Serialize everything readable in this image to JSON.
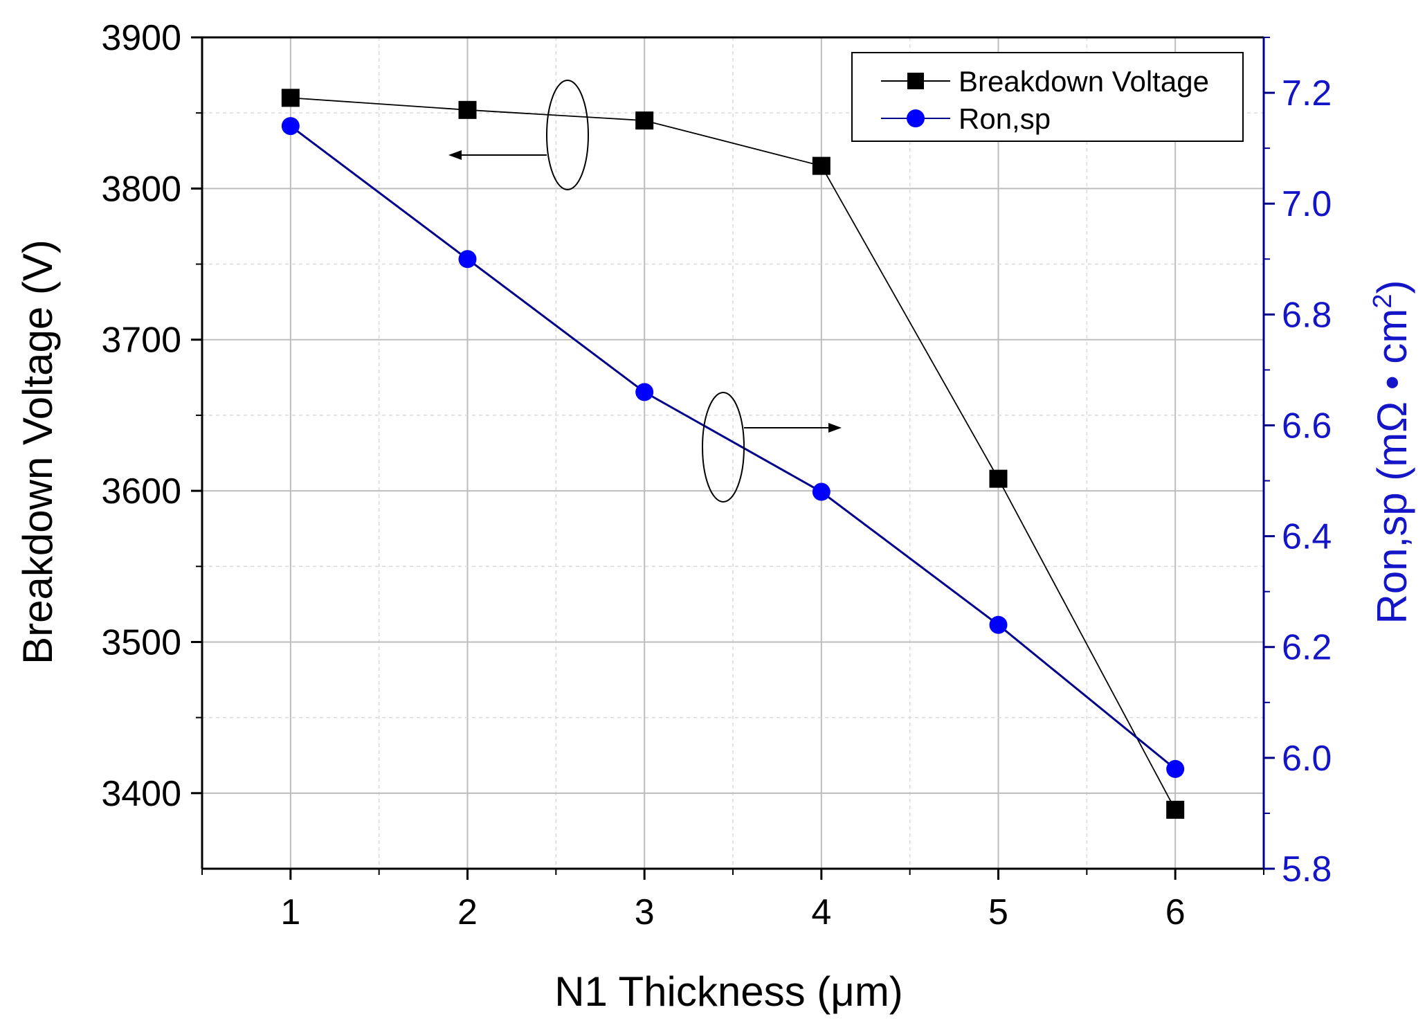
{
  "chart_data": {
    "type": "line",
    "title": "",
    "xlabel": "N1 Thickness (μm)",
    "ylabel": "Breakdown Voltage (V)",
    "y2label": "Ron,sp (mΩ • cm²)",
    "y2label_parts": {
      "main": "Ron,sp (mΩ • cm",
      "sup": "2",
      "end": ")"
    },
    "xlim": [
      0.5,
      6.5
    ],
    "ylim": [
      3350,
      3900
    ],
    "y2lim": [
      5.8,
      7.3
    ],
    "x_ticks": [
      1,
      2,
      3,
      4,
      5,
      6
    ],
    "y_ticks": [
      3400,
      3500,
      3600,
      3700,
      3800,
      3900
    ],
    "y2_ticks": [
      5.8,
      6.0,
      6.2,
      6.4,
      6.6,
      6.8,
      7.0,
      7.2
    ],
    "y2_tick_labels": [
      "5.8",
      "6.0",
      "6.2",
      "6.4",
      "6.6",
      "6.8",
      "7.0",
      "7.2"
    ],
    "grid": true,
    "legend_position": "top-right",
    "series": [
      {
        "name": "Breakdown Voltage",
        "axis": "left",
        "color": "#000000",
        "marker": "square",
        "x": [
          1,
          2,
          3,
          4,
          5,
          6
        ],
        "values": [
          3860,
          3852,
          3845,
          3815,
          3608,
          3389
        ]
      },
      {
        "name": "Ron,sp",
        "axis": "right",
        "color": "#0000ff",
        "line_color": "#00008b",
        "marker": "circle",
        "x": [
          1,
          2,
          3,
          4,
          5,
          6
        ],
        "values": [
          7.14,
          6.9,
          6.66,
          6.48,
          6.24,
          5.98
        ]
      }
    ],
    "annotations": [
      {
        "type": "ellipse-arrow",
        "series": "Breakdown Voltage",
        "points_to": "left axis"
      },
      {
        "type": "ellipse-arrow",
        "series": "Ron,sp",
        "points_to": "right axis"
      }
    ]
  },
  "colors": {
    "axis": "#000000",
    "right_axis": "#00008b",
    "right_text": "#1515c8",
    "grid_major": "#bdbdbd",
    "grid_minor": "#d9d9d9"
  }
}
